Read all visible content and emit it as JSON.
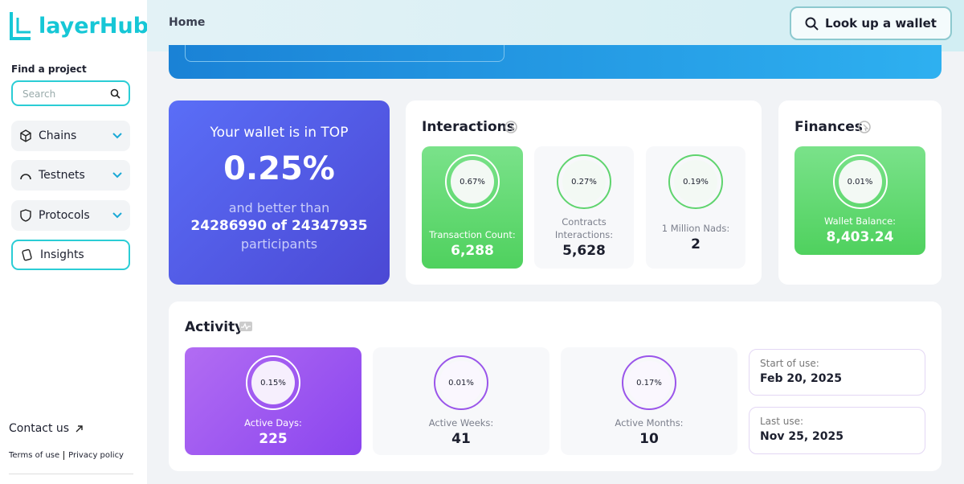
{
  "sidebar": {
    "logo": "layerHub",
    "find_label": "Find a project",
    "search_placeholder": "Search",
    "nav": [
      "Chains",
      "Testnets",
      "Protocols",
      "Insights"
    ],
    "contact": "Contact us",
    "terms": "Terms of use",
    "privacy": "Privacy policy"
  },
  "header": {
    "breadcrumb": "Home",
    "lookup_button": "Look up a wallet"
  },
  "rank": {
    "title": "Your wallet is in TOP",
    "percent": "0.25%",
    "better_than": "and better than",
    "count": "24286990 of 24347935",
    "participants": "participants"
  },
  "interactions": {
    "title": "Interactions",
    "cards": [
      {
        "percent": "0.67%",
        "label": "Transaction Count:",
        "value": "6,288"
      },
      {
        "percent": "0.27%",
        "label": "Contracts Interactions:",
        "value": "5,628"
      },
      {
        "percent": "0.19%",
        "label": "1 Million Nads:",
        "value": "2"
      }
    ]
  },
  "finances": {
    "title": "Finances",
    "cards": [
      {
        "percent": "0.01%",
        "label": "Wallet Balance:",
        "value": "8,403.24"
      }
    ]
  },
  "activity": {
    "title": "Activity",
    "cards": [
      {
        "percent": "0.15%",
        "label": "Active Days:",
        "value": "225"
      },
      {
        "percent": "0.01%",
        "label": "Active Weeks:",
        "value": "41"
      },
      {
        "percent": "0.17%",
        "label": "Active Months:",
        "value": "10"
      }
    ],
    "dates": [
      {
        "label": "Start of use:",
        "value": "Feb 20, 2025"
      },
      {
        "label": "Last use:",
        "value": "Nov 25, 2025"
      }
    ]
  }
}
